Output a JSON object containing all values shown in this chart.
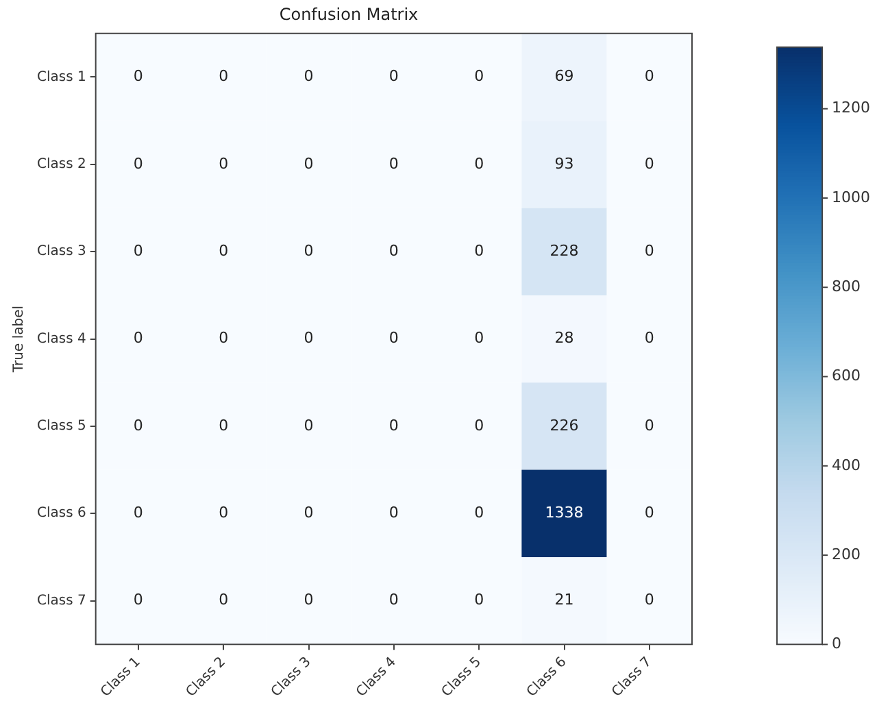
{
  "chart_data": {
    "type": "heatmap",
    "title": "Confusion Matrix",
    "ylabel": "True label",
    "categories": [
      "Class 1",
      "Class 2",
      "Class 3",
      "Class 4",
      "Class 5",
      "Class 6",
      "Class 7"
    ],
    "y_categories": [
      "Class 1",
      "Class 2",
      "Class 3",
      "Class 4",
      "Class 5",
      "Class 6",
      "Class 7"
    ],
    "cells": [
      [
        0,
        0,
        0,
        0,
        0,
        69,
        0
      ],
      [
        0,
        0,
        0,
        0,
        0,
        93,
        0
      ],
      [
        0,
        0,
        0,
        0,
        0,
        228,
        0
      ],
      [
        0,
        0,
        0,
        0,
        0,
        28,
        0
      ],
      [
        0,
        0,
        0,
        0,
        0,
        226,
        0
      ],
      [
        0,
        0,
        0,
        0,
        0,
        1338,
        0
      ],
      [
        0,
        0,
        0,
        0,
        0,
        21,
        0
      ]
    ],
    "clim": [
      0,
      1338
    ],
    "cticks": [
      0,
      200,
      400,
      600,
      800,
      1000,
      1200
    ],
    "data_labels": true
  }
}
